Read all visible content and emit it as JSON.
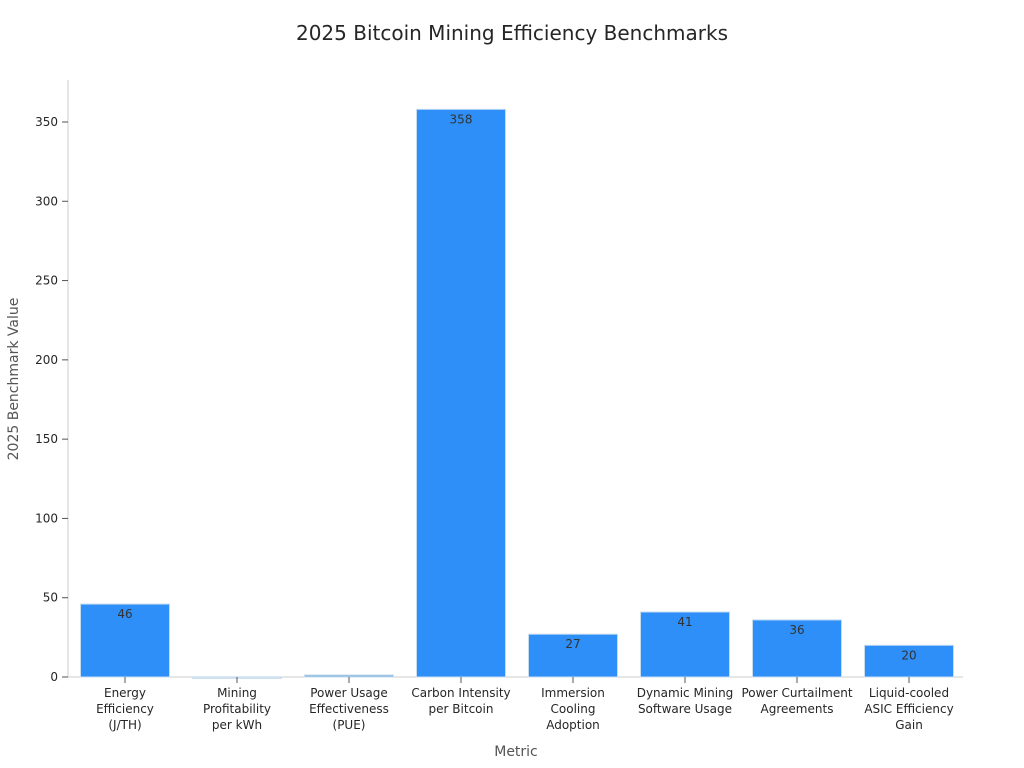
{
  "chart_data": {
    "type": "bar",
    "title": "2025 Bitcoin Mining Efficiency Benchmarks",
    "xlabel": "Metric",
    "ylabel": "2025 Benchmark Value",
    "categories": [
      [
        "Energy",
        "Efficiency",
        "(J/TH)"
      ],
      [
        "Mining",
        "Profitability",
        "per kWh"
      ],
      [
        "Power Usage",
        "Effectiveness",
        "(PUE)"
      ],
      [
        "Carbon Intensity",
        "per Bitcoin"
      ],
      [
        "Immersion",
        "Cooling",
        "Adoption"
      ],
      [
        "Dynamic Mining",
        "Software Usage"
      ],
      [
        "Power Curtailment",
        "Agreements"
      ],
      [
        "Liquid-cooled",
        "ASIC Efficiency",
        "Gain"
      ]
    ],
    "values": [
      46,
      0.1,
      1.3,
      358,
      27,
      41,
      36,
      20
    ],
    "data_labels": [
      "46",
      null,
      null,
      "358",
      "27",
      "41",
      "36",
      "20"
    ],
    "bar_colors": [
      "#2d8ff7",
      "#dde6f0",
      "#7ab0dd",
      "#2d8ff7",
      "#2d8ff7",
      "#2d8ff7",
      "#2d8ff7",
      "#2d8ff7"
    ],
    "ylim": [
      0,
      375
    ],
    "yticks": [
      0,
      50,
      100,
      150,
      200,
      250,
      300,
      350
    ],
    "grid": false,
    "legend": "none"
  }
}
